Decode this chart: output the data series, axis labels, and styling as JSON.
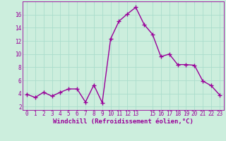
{
  "x": [
    0,
    1,
    2,
    3,
    4,
    5,
    6,
    7,
    8,
    9,
    10,
    11,
    12,
    13,
    14,
    15,
    16,
    17,
    18,
    19,
    20,
    21,
    22,
    23
  ],
  "y": [
    3.9,
    3.4,
    4.2,
    3.6,
    4.2,
    4.7,
    4.7,
    2.7,
    5.3,
    2.6,
    12.3,
    15.0,
    16.1,
    17.1,
    14.5,
    13.0,
    9.6,
    10.0,
    8.4,
    8.4,
    8.3,
    5.9,
    5.2,
    3.8
  ],
  "line_color": "#990099",
  "marker": "+",
  "markersize": 4,
  "linewidth": 1.0,
  "bg_color": "#cceedd",
  "grid_color": "#aaddcc",
  "xlabel": "Windchill (Refroidissement éolien,°C)",
  "xlabel_fontsize": 6.5,
  "tick_fontsize": 5.5,
  "xlim": [
    -0.5,
    23.5
  ],
  "ylim": [
    1.5,
    18.0
  ],
  "yticks": [
    2,
    4,
    6,
    8,
    10,
    12,
    14,
    16
  ],
  "xtick_labels": [
    "0",
    "1",
    "2",
    "3",
    "4",
    "5",
    "6",
    "7",
    "8",
    "9",
    "10",
    "11",
    "12",
    "13",
    "15",
    "16",
    "17",
    "18",
    "19",
    "20",
    "21",
    "22",
    "23"
  ],
  "xtick_positions": [
    0,
    1,
    2,
    3,
    4,
    5,
    6,
    7,
    8,
    9,
    10,
    11,
    12,
    13,
    15,
    16,
    17,
    18,
    19,
    20,
    21,
    22,
    23
  ]
}
